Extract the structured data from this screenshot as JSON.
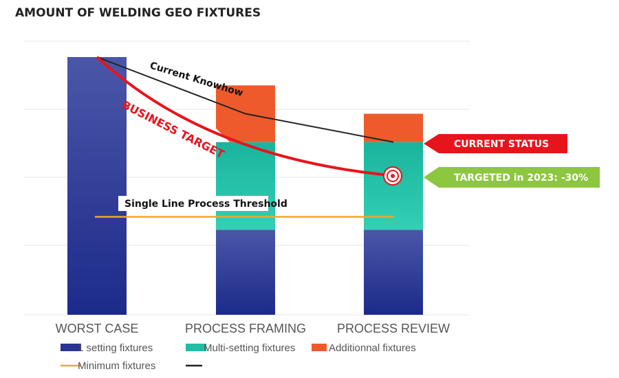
{
  "chart_data": {
    "type": "bar",
    "title": "AMOUNT OF WELDING GEO FIXTURES",
    "categories": [
      "WORST CASE",
      "PROCESS FRAMING",
      "PROCESS REVIEW"
    ],
    "stacked": true,
    "ylim": [
      0,
      100
    ],
    "grid": true,
    "series": [
      {
        "name": "1 setting fixtures",
        "color": "#283593",
        "values": [
          100,
          33,
          33
        ]
      },
      {
        "name": "Multi-setting fixtures",
        "color": "#1fbfa6",
        "values": [
          0,
          34,
          34
        ]
      },
      {
        "name": "Additionnal fixtures",
        "color": "#ee5a2c",
        "values": [
          0,
          22,
          11
        ]
      }
    ],
    "lines": [
      {
        "name": "Minimum fixtures",
        "color": "#f5a623",
        "label": "Single Line Process Threshold",
        "values": [
          38,
          38,
          38
        ]
      },
      {
        "name": "",
        "color": "#222222",
        "label": "Current Knowhow",
        "values": [
          100,
          78,
          67
        ]
      },
      {
        "name": "",
        "color": "#e8141c",
        "label": "BUSINESS TARGET",
        "values": [
          100,
          70,
          54
        ]
      }
    ],
    "annotations": {
      "current_status": "CURRENT STATUS",
      "targeted": "TARGETED in 2023: -30%"
    },
    "legend_position": "bottom-left",
    "colors": {
      "current_status": "#e8141c",
      "targeted": "#8dc63f"
    }
  }
}
